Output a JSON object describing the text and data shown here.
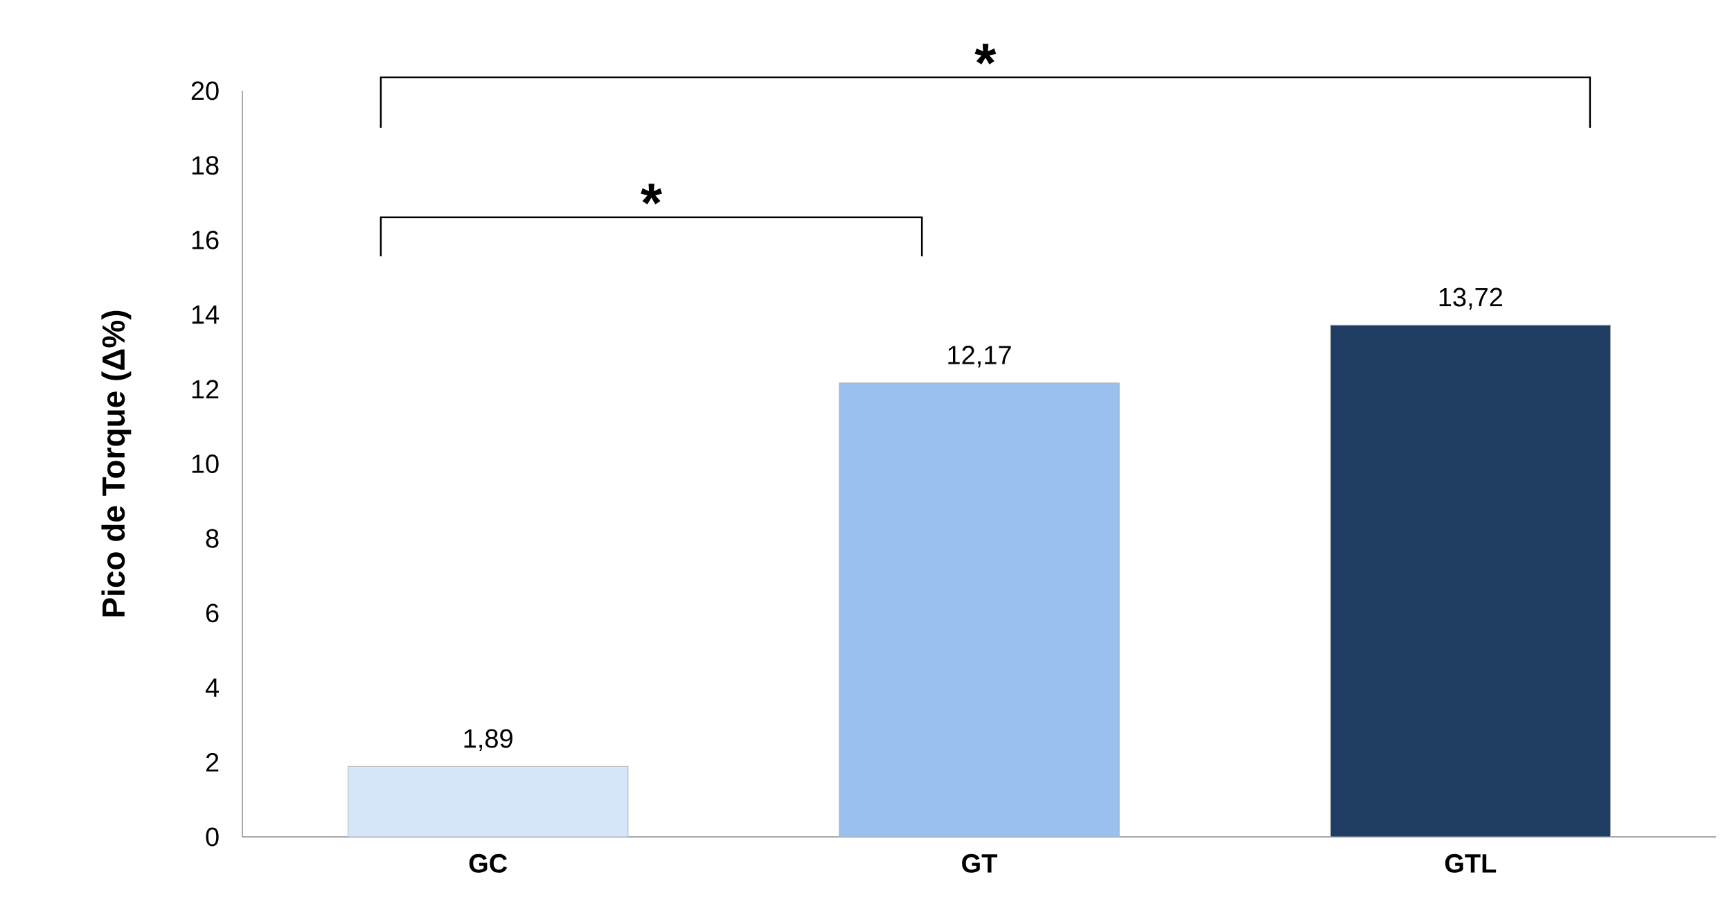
{
  "chart_data": {
    "type": "bar",
    "ylabel": "Pico de Torque (Δ%)",
    "categories": [
      "GC",
      "GT",
      "GTL"
    ],
    "values": [
      1.89,
      12.17,
      13.72
    ],
    "value_labels": [
      "1,89",
      "12,17",
      "13,72"
    ],
    "colors": [
      "#d6e6fa",
      "#99c0ef",
      "#1f3d63"
    ],
    "ylim": [
      0,
      20
    ],
    "yticks": [
      0,
      2,
      4,
      6,
      8,
      10,
      12,
      14,
      16,
      18,
      20
    ],
    "annotations": [
      "*",
      "*"
    ]
  }
}
